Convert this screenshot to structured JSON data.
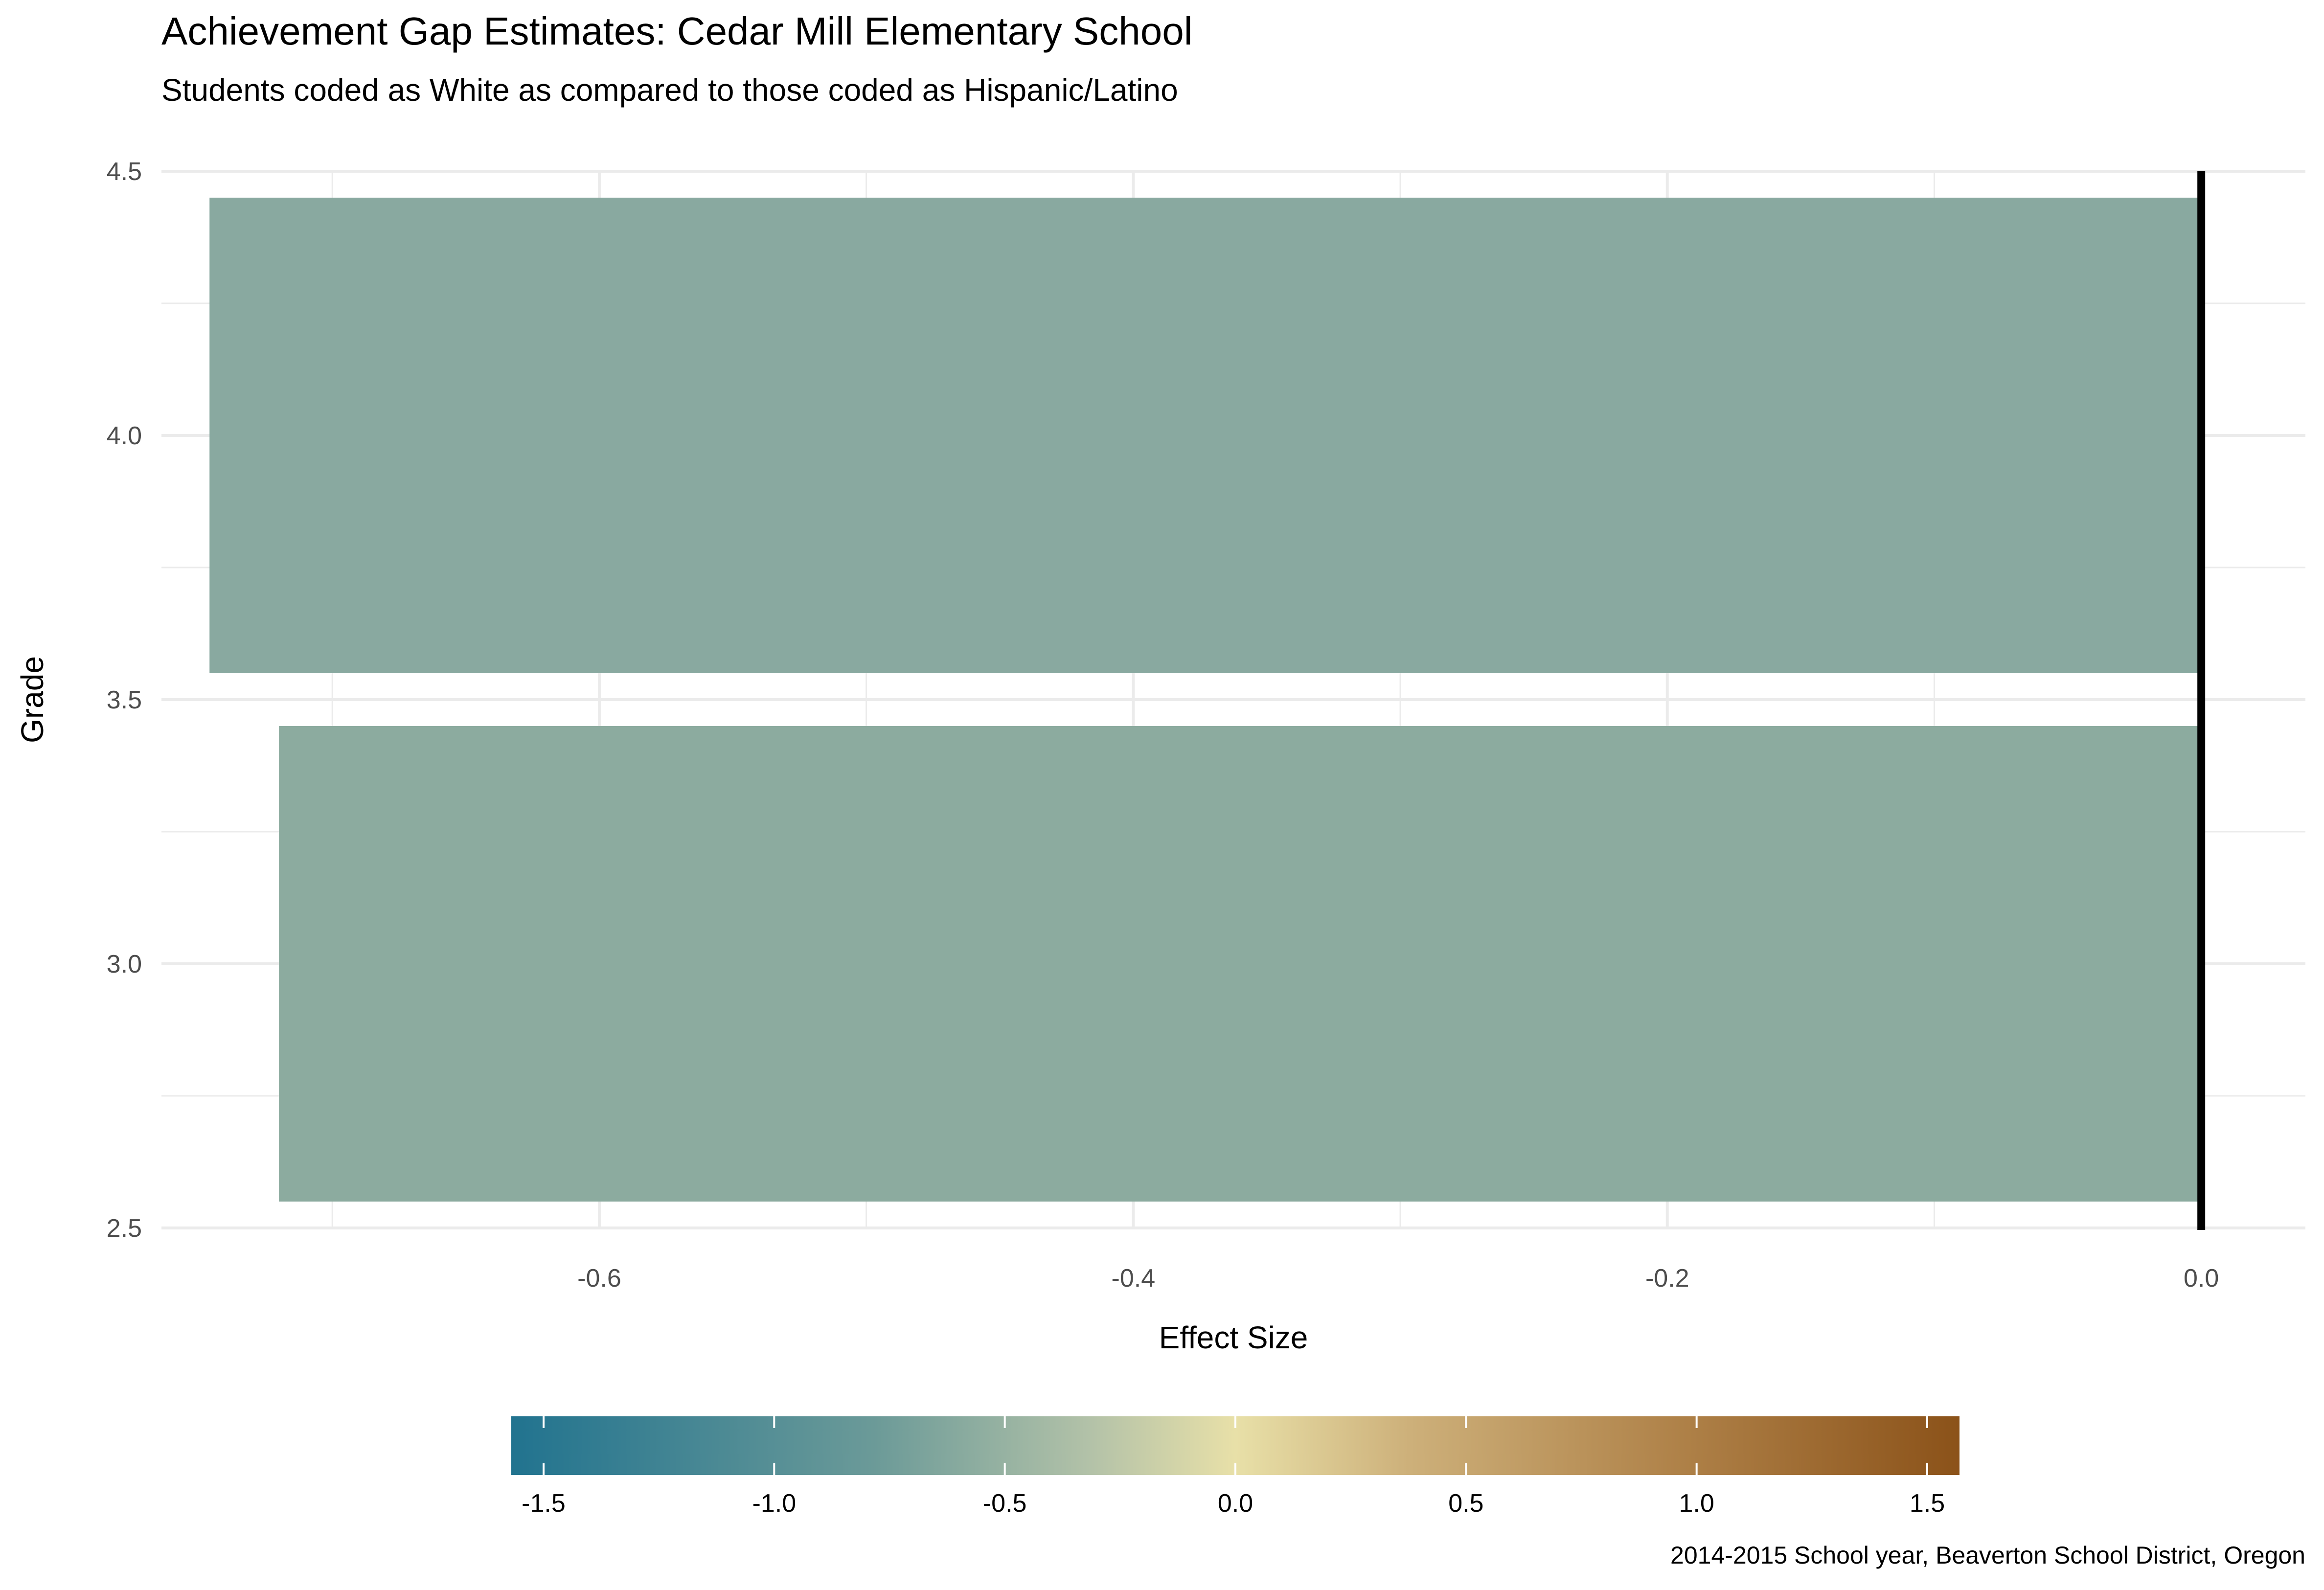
{
  "chart_data": {
    "type": "bar",
    "orientation": "horizontal",
    "title": "Achievement Gap Estimates: Cedar Mill Elementary School",
    "subtitle": "Students coded as White as compared to those coded as Hispanic/Latino",
    "xlabel": "Effect Size",
    "ylabel": "Grade",
    "caption": "2014-2015 School year, Beaverton  School District, Oregon",
    "xlim": [
      -0.764,
      0.039
    ],
    "ylim": [
      2.5,
      4.5
    ],
    "x_ticks": [
      -0.6,
      -0.4,
      -0.2,
      0.0
    ],
    "x_tick_labels": [
      "-0.6",
      "-0.4",
      "-0.2",
      "0.0"
    ],
    "y_ticks": [
      2.5,
      3.0,
      3.5,
      4.0,
      4.5
    ],
    "y_tick_labels": [
      "2.5",
      "3.0",
      "3.5",
      "4.0",
      "4.5"
    ],
    "grid": true,
    "reference_line_x": 0.0,
    "bars": [
      {
        "grade": 3,
        "value": -0.72,
        "color": "#8cab9f"
      },
      {
        "grade": 4,
        "value": -0.746,
        "color": "#89a9a0"
      }
    ],
    "bar_width": 0.9,
    "legend": {
      "type": "colorbar",
      "placement": "bottom",
      "ticks": [
        -1.5,
        -1.0,
        -0.5,
        0.0,
        0.5,
        1.0,
        1.5
      ],
      "tick_labels": [
        "-1.5",
        "-1.0",
        "-0.5",
        "0.0",
        "0.5",
        "1.0",
        "1.5"
      ],
      "range": [
        -1.57,
        1.57
      ],
      "colors": {
        "low": "#21738f",
        "mid": "#e8e0a8",
        "high": "#8b5219"
      }
    }
  }
}
